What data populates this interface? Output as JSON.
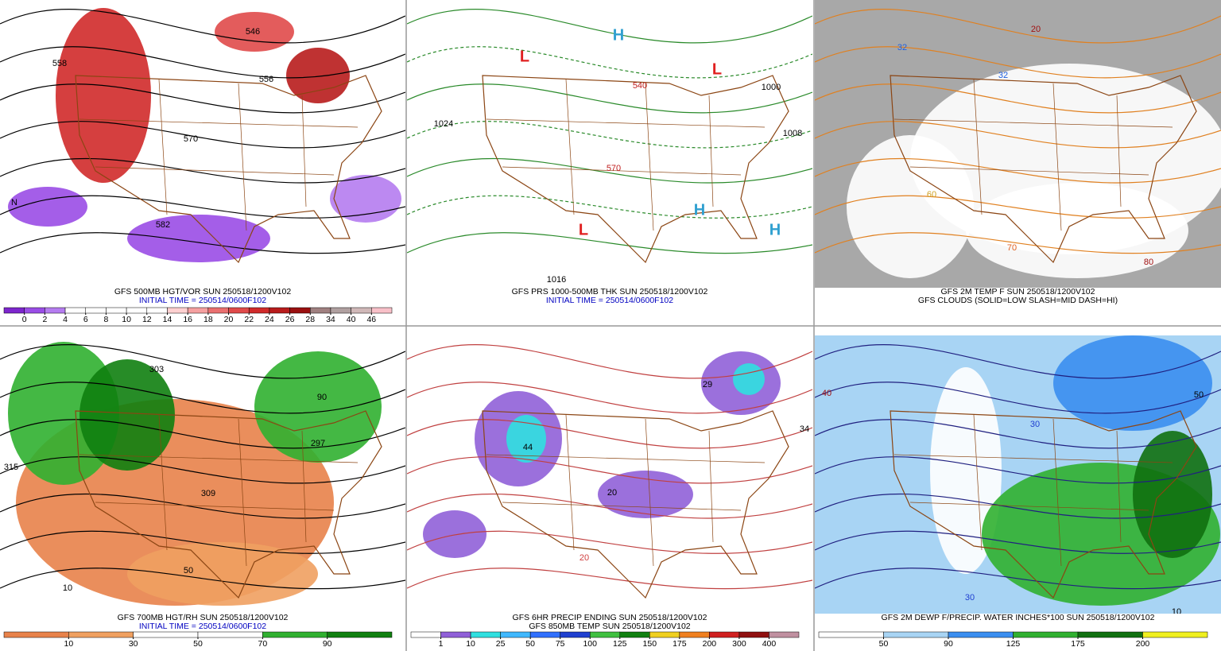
{
  "panels": [
    {
      "caption": [
        "GFS 500MB HGT/VOR SUN 250518/1200V102",
        "INITIAL TIME = 250514/0600F102"
      ],
      "map_labels": [
        "546",
        "558",
        "556",
        "570",
        "582",
        "N"
      ],
      "colorbar": {
        "ticks": [
          0,
          2,
          4,
          6,
          8,
          10,
          12,
          14,
          16,
          18,
          20,
          22,
          24,
          26,
          28,
          34,
          40,
          46
        ],
        "colors": [
          "#7d26cd",
          "#9a4de6",
          "#b57cf0",
          "#ffffff",
          "#ffffff",
          "#ffffff",
          "#ffffff",
          "#ffffff",
          "#ffd0d0",
          "#f5a0a0",
          "#ea7070",
          "#e04a4a",
          "#d02a2a",
          "#b81c1c",
          "#9a1010",
          "#a08080",
          "#b0a0a0",
          "#d0b8b8",
          "#f8c0c8"
        ]
      }
    },
    {
      "caption": [
        "GFS PRS 1000-500MB THK SUN 250518/1200V102",
        "INITIAL TIME = 250514/0600F102"
      ],
      "map_labels": [
        "L",
        "L",
        "H",
        "1024",
        "1000",
        "1008",
        "L",
        "H",
        "H",
        "1016",
        "540",
        "570"
      ]
    },
    {
      "caption": [
        "GFS 2M TEMP F SUN 250518/1200V102",
        "GFS CLOUDS (SOLID=LOW SLASH=MID DASH=HI)"
      ],
      "map_labels": [
        "32",
        "32",
        "60",
        "70",
        "80",
        "20"
      ]
    },
    {
      "caption": [
        "GFS 700MB HGT/RH SUN 250518/1200V102",
        "INITIAL TIME = 250514/0600F102"
      ],
      "map_labels": [
        "315",
        "303",
        "297",
        "309",
        "90",
        "10",
        "50"
      ],
      "colorbar": {
        "ticks": [
          10,
          30,
          50,
          70,
          90
        ],
        "colors": [
          "#e8824a",
          "#f0a060",
          "#ffffff",
          "#ffffff",
          "#30b030",
          "#108010"
        ]
      }
    },
    {
      "caption": [
        "GFS 6HR PRECIP ENDING SUN 250518/1200V102",
        "GFS 850MB TEMP SUN 250518/1200V102"
      ],
      "map_labels": [
        "29",
        "44",
        "20",
        "20",
        "34"
      ],
      "colorbar": {
        "ticks": [
          1,
          10,
          25,
          50,
          75,
          100,
          125,
          150,
          175,
          200,
          300,
          400
        ],
        "colors": [
          "#ffffff",
          "#9060d8",
          "#30e0e0",
          "#40b8ff",
          "#3070ff",
          "#2040d0",
          "#40c040",
          "#108010",
          "#f0d020",
          "#f08020",
          "#d02020",
          "#901010",
          "#c090a0"
        ]
      }
    },
    {
      "caption": [
        "GFS 2M DEWP F/PRECIP. WATER INCHES*100 SUN 250518/1200V102"
      ],
      "map_labels": [
        "30",
        "50",
        "40",
        "30",
        "10"
      ],
      "colorbar": {
        "ticks": [
          50,
          90,
          125,
          175,
          200
        ],
        "colors": [
          "#ffffff",
          "#a8d4f4",
          "#3a8ef0",
          "#30b030",
          "#107010",
          "#f0f020"
        ]
      }
    }
  ]
}
